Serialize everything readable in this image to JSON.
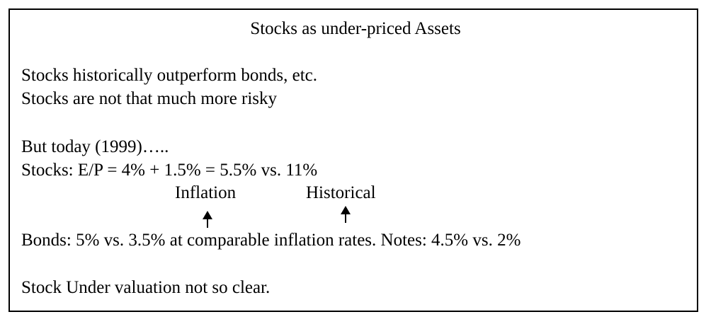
{
  "slide": {
    "title": "Stocks as under-priced Assets",
    "lines": [
      "Stocks historically outperform bonds, etc.",
      "Stocks are not that much more risky",
      "But today (1999)…..",
      "Stocks: E/P = 4% + 1.5% = 5.5% vs. 11%",
      "Bonds: 5% vs. 3.5% at comparable inflation rates.  Notes: 4.5% vs. 2%",
      "Stock Under valuation not so clear."
    ],
    "annotations": {
      "inflation": "Inflation",
      "historical": "Historical"
    }
  },
  "icons": {
    "arrow": "up-arrow-icon"
  }
}
